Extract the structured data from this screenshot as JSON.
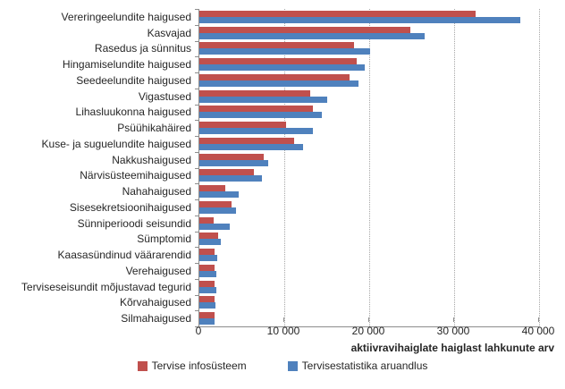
{
  "chart_data": {
    "type": "bar",
    "orientation": "horizontal",
    "title": "",
    "categories": [
      "Vereringeelundite haigused",
      "Kasvajad",
      "Rasedus ja sünnitus",
      "Hingamiselundite haigused",
      "Seedeelundite haigused",
      "Vigastused",
      "Lihasluukonna haigused",
      "Psüühikahäired",
      "Kuse- ja suguelundite haigused",
      "Nakkushaigused",
      "Närvisüsteemihaigused",
      "Nahahaigused",
      "Sisesekretsioonihaigused",
      "Sünniperioodi seisundid",
      "Sümptomid",
      "Kaasasündinud väärarendid",
      "Verehaigused",
      "Terviseseisundit mõjustavad tegurid",
      "Kõrvahaigused",
      "Silmahaigused"
    ],
    "series": [
      {
        "name": "Tervise infosüsteem",
        "color": "#C0504D",
        "values": [
          32500,
          24800,
          18200,
          18500,
          17700,
          13000,
          13400,
          10200,
          11200,
          7600,
          6400,
          3000,
          3800,
          1700,
          2200,
          1800,
          1800,
          1800,
          1800,
          1800
        ]
      },
      {
        "name": "Tervisestatistika aruandlus",
        "color": "#4F81BD",
        "values": [
          37800,
          26500,
          20100,
          19500,
          18700,
          15000,
          14400,
          13400,
          12200,
          8100,
          7400,
          4600,
          4300,
          3600,
          2500,
          2100,
          2000,
          2000,
          1900,
          1800
        ]
      }
    ],
    "xlabel": "aktiivravihaiglate haiglast lahkunute arv",
    "ylabel": "",
    "xlim": [
      0,
      40000
    ],
    "xticks": [
      0,
      10000,
      20000,
      30000,
      40000
    ],
    "xtick_labels": [
      "0",
      "10 000",
      "20 000",
      "30 000",
      "40 000"
    ],
    "grid": "vertical-dotted",
    "legend_position": "bottom"
  },
  "colors": {
    "axis": "#8c8c8c",
    "gridline": "#a6a6a6",
    "text": "#262626",
    "background": "#ffffff"
  }
}
